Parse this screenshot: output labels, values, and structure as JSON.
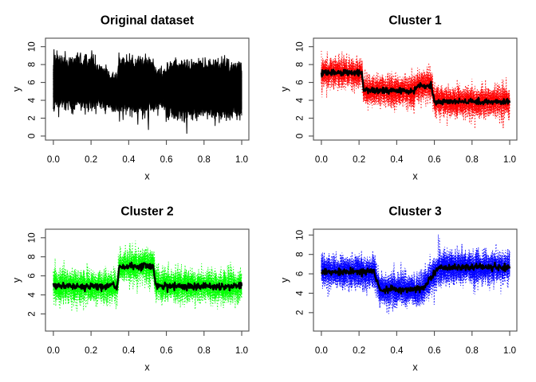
{
  "figure": {
    "background": "#ffffff",
    "grid": [
      2,
      2
    ]
  },
  "signals": {
    "cluster1": {
      "color": "#ff0000",
      "noise_sd": 0.8,
      "n_series": 18,
      "n_points": 320,
      "mean_path": [
        [
          0,
          7.1
        ],
        [
          0.215,
          7.1
        ],
        [
          0.225,
          5.05
        ],
        [
          0.49,
          5.05
        ],
        [
          0.515,
          5.65
        ],
        [
          0.585,
          5.65
        ],
        [
          0.6,
          3.85
        ],
        [
          1,
          3.85
        ]
      ]
    },
    "cluster2": {
      "color": "#00ff00",
      "noise_sd": 0.8,
      "n_series": 18,
      "n_points": 320,
      "mean_path": [
        [
          0,
          4.9
        ],
        [
          0.34,
          4.9
        ],
        [
          0.35,
          7.0
        ],
        [
          0.53,
          7.0
        ],
        [
          0.545,
          4.9
        ],
        [
          1,
          4.9
        ]
      ]
    },
    "cluster3": {
      "color": "#0000ff",
      "noise_sd": 0.8,
      "n_series": 18,
      "n_points": 320,
      "mean_path": [
        [
          0,
          6.2
        ],
        [
          0.28,
          6.2
        ],
        [
          0.31,
          4.4
        ],
        [
          0.54,
          4.4
        ],
        [
          0.62,
          6.65
        ],
        [
          1,
          6.65
        ]
      ]
    }
  },
  "mean_line": {
    "color": "#000000",
    "noise_sd": 0.17
  },
  "axis_style": {
    "frame_color": "#4d4d4d",
    "text_color": "#000000"
  },
  "chart_data": [
    {
      "type": "line",
      "title": "Original dataset",
      "xlabel": "x",
      "ylabel": "y",
      "xlim": [
        -0.042,
        1.038
      ],
      "ylim": [
        -0.45,
        10.95
      ],
      "xticks": [
        0,
        0.2,
        0.4,
        0.6,
        0.8,
        1.0
      ],
      "xtick_labels": [
        "0.0",
        "0.2",
        "0.4",
        "0.6",
        "0.8",
        "1.0"
      ],
      "yticks": [
        0,
        2,
        4,
        6,
        8,
        10
      ],
      "grid": false,
      "legend": false,
      "signals": [
        "cluster1",
        "cluster2",
        "cluster3"
      ],
      "line_style": "solid",
      "line_color": "#000000",
      "mean_line": false,
      "seed": 11
    },
    {
      "type": "line",
      "title": "Cluster 1",
      "xlabel": "x",
      "ylabel": "y",
      "xlim": [
        -0.042,
        1.038
      ],
      "ylim": [
        -0.45,
        10.95
      ],
      "xticks": [
        0,
        0.2,
        0.4,
        0.6,
        0.8,
        1.0
      ],
      "xtick_labels": [
        "0.0",
        "0.2",
        "0.4",
        "0.6",
        "0.8",
        "1.0"
      ],
      "yticks": [
        0,
        2,
        4,
        6,
        8,
        10
      ],
      "grid": false,
      "legend": false,
      "signals": [
        "cluster1"
      ],
      "line_style": "dotted",
      "line_color": null,
      "mean_line": true,
      "seed": 23
    },
    {
      "type": "line",
      "title": "Cluster 2",
      "xlabel": "x",
      "ylabel": "y",
      "xlim": [
        -0.042,
        1.038
      ],
      "ylim": [
        0.2,
        10.9
      ],
      "xticks": [
        0,
        0.2,
        0.4,
        0.6,
        0.8,
        1.0
      ],
      "xtick_labels": [
        "0.0",
        "0.2",
        "0.4",
        "0.6",
        "0.8",
        "1.0"
      ],
      "yticks": [
        2,
        4,
        6,
        8,
        10
      ],
      "grid": false,
      "legend": false,
      "signals": [
        "cluster2"
      ],
      "line_style": "dotted",
      "line_color": null,
      "mean_line": true,
      "seed": 37
    },
    {
      "type": "line",
      "title": "Cluster 3",
      "xlabel": "x",
      "ylabel": "y",
      "xlim": [
        -0.042,
        1.038
      ],
      "ylim": [
        0.1,
        10.6
      ],
      "xticks": [
        0,
        0.2,
        0.4,
        0.6,
        0.8,
        1.0
      ],
      "xtick_labels": [
        "0.0",
        "0.2",
        "0.4",
        "0.6",
        "0.8",
        "1.0"
      ],
      "yticks": [
        2,
        4,
        6,
        8,
        10
      ],
      "grid": false,
      "legend": false,
      "signals": [
        "cluster3"
      ],
      "line_style": "dotted",
      "line_color": null,
      "mean_line": true,
      "seed": 53
    }
  ]
}
